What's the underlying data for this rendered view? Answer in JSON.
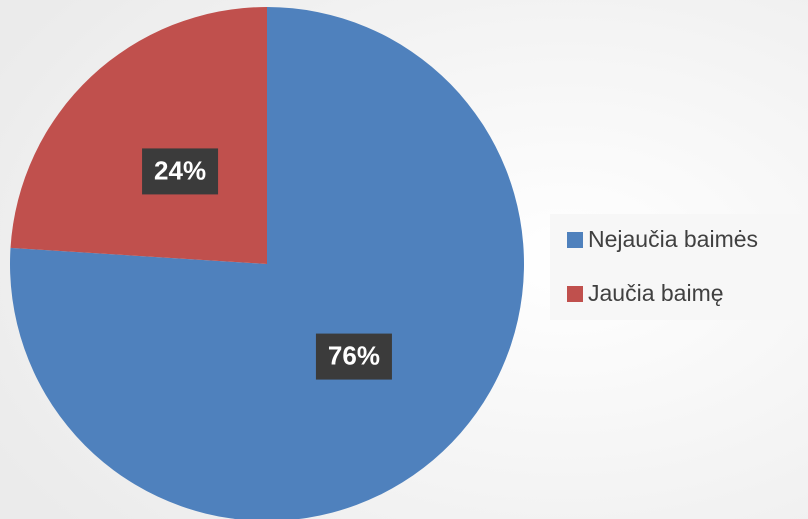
{
  "chart_data": {
    "type": "pie",
    "categories": [
      "Nejaučia baimės",
      "Jaučia baimę"
    ],
    "values": [
      76,
      24
    ],
    "value_labels": [
      "76%",
      "24%"
    ],
    "colors": [
      "#4f81bd",
      "#c0504d"
    ],
    "legend": "right"
  }
}
